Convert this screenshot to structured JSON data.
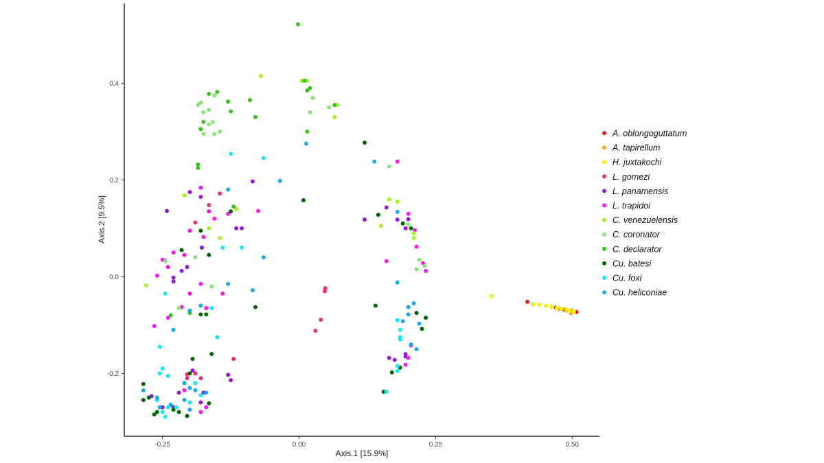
{
  "chart_data": {
    "type": "scatter",
    "xlabel": "Axis.1   [15.9%]",
    "ylabel": "Axis.2   [9.5%]",
    "xlim": [
      -0.32,
      0.55
    ],
    "ylim": [
      -0.33,
      0.565
    ],
    "x_ticks": [
      -0.25,
      0.0,
      0.25,
      0.5
    ],
    "x_tick_labels": [
      "-0.25",
      "0.00",
      "0.25",
      "0.50"
    ],
    "y_ticks": [
      -0.2,
      0.0,
      0.2,
      0.4
    ],
    "y_tick_labels": [
      "-0.2",
      "0.0",
      "0.2",
      "0.4"
    ],
    "grid": false,
    "legend_position": "right",
    "series": [
      {
        "name": "A. oblongoguttatum",
        "color": "#e41a1c",
        "points": [
          [
            0.418,
            -0.052
          ],
          [
            0.47,
            -0.064
          ],
          [
            0.485,
            -0.068
          ],
          [
            0.5,
            -0.071
          ],
          [
            0.508,
            -0.073
          ]
        ]
      },
      {
        "name": "A. tapirellum",
        "color": "#f5a623",
        "points": [
          [
            0.476,
            -0.067
          ],
          [
            0.49,
            -0.07
          ],
          [
            0.498,
            -0.076
          ]
        ]
      },
      {
        "name": "H. juxtakochi",
        "color": "#f5f000",
        "points": [
          [
            0.352,
            -0.04
          ],
          [
            0.428,
            -0.057
          ],
          [
            0.44,
            -0.058
          ],
          [
            0.452,
            -0.06
          ],
          [
            0.462,
            -0.062
          ],
          [
            0.472,
            -0.065
          ],
          [
            0.481,
            -0.066
          ],
          [
            0.489,
            -0.068
          ],
          [
            0.496,
            -0.07
          ],
          [
            0.503,
            -0.072
          ]
        ]
      },
      {
        "name": "L. gomezi",
        "color": "#e8307c",
        "points": [
          [
            -0.19,
            0.112
          ],
          [
            -0.205,
            -0.202
          ],
          [
            -0.18,
            -0.21
          ],
          [
            -0.12,
            -0.17
          ],
          [
            0.048,
            -0.024
          ],
          [
            0.047,
            -0.03
          ],
          [
            0.04,
            -0.089
          ],
          [
            0.03,
            -0.112
          ],
          [
            -0.145,
            0.172
          ],
          [
            -0.245,
            0.033
          ],
          [
            -0.19,
            -0.2
          ],
          [
            -0.165,
            0.148
          ],
          [
            -0.205,
            -0.21
          ]
        ]
      },
      {
        "name": "L. panamensis",
        "color": "#8c1ed6",
        "points": [
          [
            -0.242,
            0.136
          ],
          [
            -0.2,
            0.175
          ],
          [
            -0.18,
            0.165
          ],
          [
            -0.178,
            0.06
          ],
          [
            -0.23,
            -0.002
          ],
          [
            -0.215,
            0.012
          ],
          [
            -0.205,
            0.02
          ],
          [
            -0.23,
            -0.01
          ],
          [
            -0.115,
            0.1
          ],
          [
            -0.105,
            0.1
          ],
          [
            -0.085,
            0.197
          ],
          [
            0.12,
            0.118
          ],
          [
            0.16,
            0.143
          ],
          [
            0.18,
            0.118
          ],
          [
            0.195,
            0.1
          ],
          [
            0.2,
            0.119
          ],
          [
            0.165,
            -0.168
          ],
          [
            0.175,
            -0.172
          ],
          [
            0.195,
            -0.16
          ],
          [
            0.195,
            -0.165
          ],
          [
            -0.13,
            -0.203
          ],
          [
            -0.125,
            -0.214
          ],
          [
            -0.27,
            -0.247
          ],
          [
            -0.195,
            -0.194
          ],
          [
            -0.23,
            -0.27
          ],
          [
            -0.18,
            -0.26
          ],
          [
            -0.175,
            -0.24
          ],
          [
            -0.22,
            -0.24
          ],
          [
            -0.25,
            -0.27
          ]
        ]
      },
      {
        "name": "L. trapidoi",
        "color": "#f21ee6",
        "points": [
          [
            -0.26,
            0.002
          ],
          [
            -0.265,
            -0.102
          ],
          [
            -0.25,
            0.035
          ],
          [
            -0.23,
            0.05
          ],
          [
            -0.21,
            0.045
          ],
          [
            -0.2,
            0.095
          ],
          [
            -0.175,
            0.082
          ],
          [
            -0.165,
            0.135
          ],
          [
            -0.155,
            0.12
          ],
          [
            -0.18,
            -0.015
          ],
          [
            -0.17,
            -0.065
          ],
          [
            -0.14,
            -0.035
          ],
          [
            -0.2,
            -0.035
          ],
          [
            -0.215,
            -0.063
          ],
          [
            -0.075,
            0.136
          ],
          [
            -0.13,
            0.13
          ],
          [
            0.16,
            0.032
          ],
          [
            0.2,
            0.13
          ],
          [
            0.212,
            0.096
          ],
          [
            0.215,
            0.062
          ],
          [
            0.227,
            0.028
          ],
          [
            0.232,
            0.012
          ],
          [
            0.2,
            -0.168
          ],
          [
            0.195,
            -0.182
          ],
          [
            0.205,
            -0.142
          ],
          [
            0.18,
            0.238
          ],
          [
            -0.24,
            0.02
          ],
          [
            -0.18,
            0.184
          ],
          [
            -0.24,
            -0.085
          ],
          [
            -0.21,
            -0.235
          ],
          [
            -0.26,
            -0.255
          ],
          [
            -0.18,
            -0.28
          ],
          [
            -0.17,
            -0.27
          ]
        ]
      },
      {
        "name": "C. venezuelensis",
        "color": "#a8ef2a",
        "points": [
          [
            -0.28,
            -0.018
          ],
          [
            -0.21,
            0.168
          ],
          [
            -0.165,
            0.1
          ],
          [
            -0.145,
            0.08
          ],
          [
            -0.115,
            0.14
          ],
          [
            0.165,
            0.16
          ],
          [
            0.18,
            0.155
          ],
          [
            0.15,
            0.105
          ],
          [
            0.21,
            0.09
          ],
          [
            0.21,
            0.08
          ],
          [
            -0.07,
            0.415
          ],
          [
            0.005,
            0.405
          ],
          [
            0.015,
            0.405
          ],
          [
            0.07,
            0.355
          ],
          [
            0.065,
            0.33
          ]
        ]
      },
      {
        "name": "C. coronator",
        "color": "#8ce27c",
        "points": [
          [
            -0.175,
            0.295
          ],
          [
            -0.155,
            0.295
          ],
          [
            -0.145,
            0.3
          ],
          [
            -0.165,
            0.315
          ],
          [
            -0.158,
            0.32
          ],
          [
            -0.175,
            0.34
          ],
          [
            -0.185,
            0.355
          ],
          [
            -0.18,
            0.36
          ],
          [
            -0.165,
            0.345
          ],
          [
            -0.155,
            0.375
          ],
          [
            0.025,
            0.37
          ],
          [
            0.02,
            0.34
          ],
          [
            0.055,
            0.35
          ],
          [
            0.165,
            0.228
          ],
          [
            0.2,
            0.108
          ],
          [
            0.22,
            0.035
          ],
          [
            0.215,
            0.015
          ],
          [
            0.23,
            0.022
          ],
          [
            -0.245,
            0.032
          ],
          [
            -0.22,
            -0.065
          ],
          [
            -0.16,
            -0.02
          ],
          [
            -0.18,
            -0.06
          ],
          [
            -0.19,
            0.04
          ]
        ]
      },
      {
        "name": "C. declarator",
        "color": "#36c31e",
        "points": [
          [
            -0.002,
            0.522
          ],
          [
            -0.165,
            0.378
          ],
          [
            -0.15,
            0.382
          ],
          [
            -0.13,
            0.362
          ],
          [
            -0.125,
            0.342
          ],
          [
            -0.09,
            0.365
          ],
          [
            -0.08,
            0.33
          ],
          [
            -0.175,
            0.32
          ],
          [
            -0.18,
            0.305
          ],
          [
            -0.185,
            0.232
          ],
          [
            -0.185,
            0.225
          ],
          [
            0.01,
            0.405
          ],
          [
            0.02,
            0.39
          ],
          [
            0.015,
            0.385
          ],
          [
            0.065,
            0.355
          ],
          [
            0.015,
            0.3
          ],
          [
            -0.235,
            -0.08
          ],
          [
            -0.2,
            -0.075
          ],
          [
            -0.12,
            0.145
          ]
        ]
      },
      {
        "name": "Cu. batesi",
        "color": "#006400",
        "points": [
          [
            0.12,
            0.277
          ],
          [
            0.008,
            0.158
          ],
          [
            0.145,
            0.128
          ],
          [
            0.19,
            0.11
          ],
          [
            0.205,
            0.1
          ],
          [
            -0.08,
            -0.063
          ],
          [
            0.14,
            -0.06
          ],
          [
            0.215,
            -0.075
          ],
          [
            0.232,
            -0.085
          ],
          [
            0.225,
            -0.108
          ],
          [
            0.155,
            -0.238
          ],
          [
            0.17,
            -0.198
          ],
          [
            0.185,
            -0.188
          ],
          [
            -0.215,
            0.055
          ],
          [
            -0.18,
            0.095
          ],
          [
            -0.165,
            0.045
          ],
          [
            -0.18,
            -0.078
          ],
          [
            -0.17,
            -0.078
          ],
          [
            -0.125,
            0.135
          ],
          [
            -0.195,
            -0.17
          ],
          [
            -0.16,
            -0.16
          ],
          [
            -0.2,
            -0.2
          ],
          [
            -0.285,
            -0.222
          ],
          [
            -0.275,
            -0.25
          ],
          [
            -0.285,
            -0.255
          ],
          [
            -0.26,
            -0.28
          ],
          [
            -0.265,
            -0.285
          ],
          [
            -0.23,
            -0.275
          ],
          [
            -0.22,
            -0.28
          ],
          [
            -0.205,
            -0.288
          ],
          [
            -0.165,
            -0.262
          ]
        ]
      },
      {
        "name": "Cu. foxi",
        "color": "#1ee6f2",
        "points": [
          [
            -0.125,
            0.254
          ],
          [
            -0.065,
            0.245
          ],
          [
            -0.105,
            0.06
          ],
          [
            -0.14,
            0.06
          ],
          [
            -0.245,
            -0.035
          ],
          [
            -0.23,
            -0.11
          ],
          [
            -0.255,
            -0.145
          ],
          [
            -0.25,
            -0.19
          ],
          [
            -0.255,
            -0.2
          ],
          [
            -0.24,
            -0.205
          ],
          [
            -0.15,
            -0.125
          ],
          [
            -0.16,
            -0.065
          ],
          [
            0.18,
            -0.09
          ],
          [
            0.185,
            -0.11
          ],
          [
            0.185,
            -0.125
          ],
          [
            0.185,
            -0.13
          ],
          [
            0.18,
            -0.185
          ],
          [
            0.18,
            -0.195
          ],
          [
            0.16,
            -0.238
          ],
          [
            -0.19,
            -0.22
          ],
          [
            -0.18,
            -0.245
          ],
          [
            -0.2,
            -0.26
          ],
          [
            -0.26,
            -0.255
          ],
          [
            -0.25,
            -0.28
          ],
          [
            -0.245,
            -0.29
          ],
          [
            -0.24,
            -0.27
          ],
          [
            -0.225,
            -0.27
          ]
        ]
      },
      {
        "name": "Cu. heliconiae",
        "color": "#1ea8e6",
        "points": [
          [
            0.013,
            0.275
          ],
          [
            0.138,
            0.238
          ],
          [
            -0.035,
            0.198
          ],
          [
            -0.13,
            0.18
          ],
          [
            0.18,
            0.134
          ],
          [
            0.18,
            -0.012
          ],
          [
            0.21,
            -0.055
          ],
          [
            0.2,
            -0.063
          ],
          [
            0.2,
            -0.078
          ],
          [
            0.22,
            -0.097
          ],
          [
            0.19,
            -0.092
          ],
          [
            0.205,
            -0.14
          ],
          [
            0.215,
            -0.15
          ],
          [
            -0.065,
            0.04
          ],
          [
            -0.085,
            -0.028
          ],
          [
            -0.13,
            -0.015
          ],
          [
            -0.18,
            -0.06
          ],
          [
            -0.2,
            -0.07
          ],
          [
            -0.23,
            -0.11
          ],
          [
            -0.285,
            -0.235
          ],
          [
            -0.21,
            -0.22
          ],
          [
            -0.2,
            -0.23
          ],
          [
            -0.19,
            -0.235
          ],
          [
            -0.17,
            -0.24
          ],
          [
            -0.2,
            -0.275
          ],
          [
            -0.21,
            -0.255
          ],
          [
            -0.235,
            -0.265
          ],
          [
            -0.255,
            -0.27
          ],
          [
            -0.26,
            -0.25
          ]
        ]
      }
    ]
  }
}
